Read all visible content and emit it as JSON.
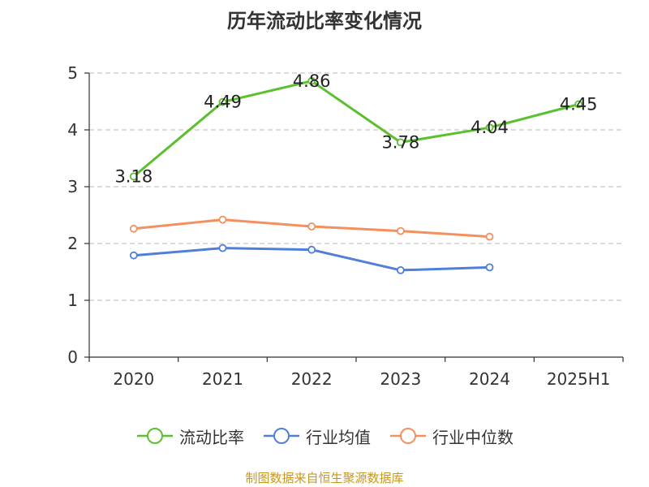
{
  "chart_data": {
    "type": "line",
    "title": "历年流动比率变化情况",
    "categories": [
      "2020",
      "2021",
      "2022",
      "2023",
      "2024",
      "2025H1"
    ],
    "ylim": [
      0,
      5
    ],
    "yticks": [
      0,
      1,
      2,
      3,
      4,
      5
    ],
    "grid": true,
    "legend_position": "bottom",
    "series": [
      {
        "name": "流动比率",
        "color": "#5cc02e",
        "values": [
          3.18,
          4.49,
          4.86,
          3.78,
          4.04,
          4.45
        ],
        "labels": true
      },
      {
        "name": "行业均值",
        "color": "#4f7fd9",
        "values": [
          1.79,
          1.92,
          1.89,
          1.53,
          1.58,
          null
        ],
        "labels": false
      },
      {
        "name": "行业中位数",
        "color": "#f39060",
        "values": [
          2.26,
          2.42,
          2.3,
          2.22,
          2.12,
          null
        ],
        "labels": false
      }
    ]
  },
  "footer": {
    "source": "制图数据来自恒生聚源数据库"
  }
}
